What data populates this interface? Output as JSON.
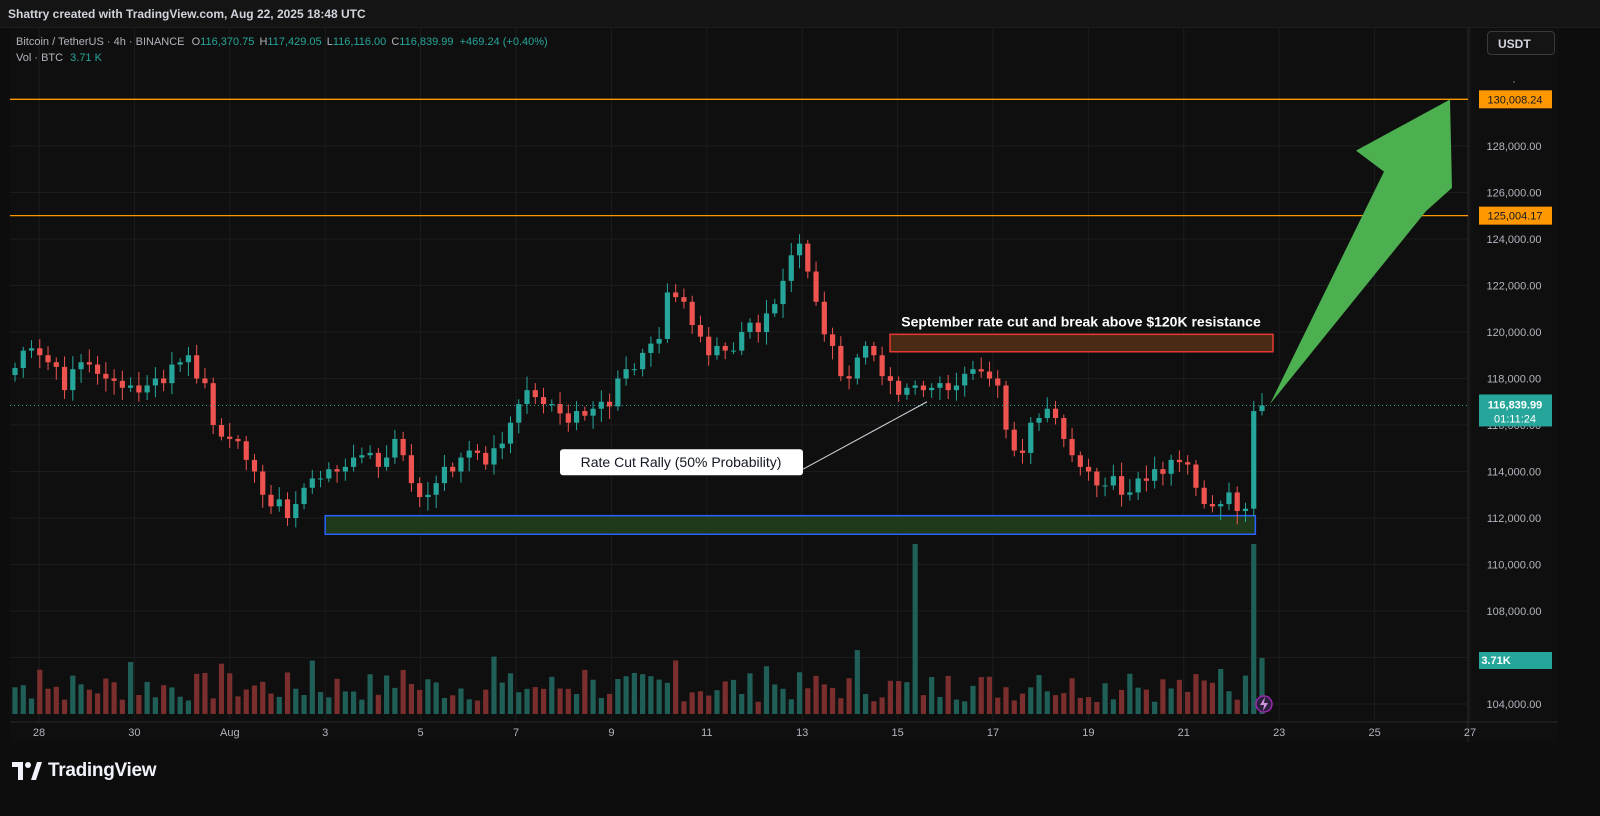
{
  "header": {
    "attribution": "Shattry created with TradingView.com, Aug 22, 2025 18:48 UTC"
  },
  "legend": {
    "symbol": "Bitcoin / TetherUS · 4h · BINANCE",
    "o_label": "O",
    "o_value": "116,370.75",
    "h_label": "H",
    "h_value": "117,429.05",
    "l_label": "L",
    "l_value": "116,116.00",
    "c_label": "C",
    "c_value": "116,839.99",
    "change": "+469.24 (+0.40%)",
    "vol_label": "Vol · BTC",
    "vol_value": "3.71 K"
  },
  "currency_button": "USDT",
  "brand": {
    "name": "TradingView"
  },
  "colors": {
    "up": "#26a69a",
    "down": "#ef5350",
    "up_volume": "#1f5f58",
    "down_volume": "#7a2e2d",
    "resistance": "#ff9800",
    "support_box_border": "#2962ff",
    "support_box_fill": "#1f3a1a",
    "target_box_border": "#e53935",
    "target_box_fill": "#4a2a14",
    "arrow": "#4caf50",
    "background": "#0f0f0f"
  },
  "chart_data": {
    "type": "candlestick",
    "symbol": "BTCUSDT",
    "timeframe": "4h",
    "exchange": "BINANCE",
    "ylim": [
      103000,
      131000
    ],
    "y_ticks": [
      "104,000.00",
      "106,000.00",
      "108,000.00",
      "110,000.00",
      "112,000.00",
      "114,000.00",
      "116,000.00",
      "118,000.00",
      "120,000.00",
      "122,000.00",
      "124,000.00",
      "126,000.00",
      "128,000.00"
    ],
    "x_ticks": [
      {
        "label": "28",
        "day": 0
      },
      {
        "label": "30",
        "day": 2
      },
      {
        "label": "Aug",
        "day": 4
      },
      {
        "label": "3",
        "day": 6
      },
      {
        "label": "5",
        "day": 8
      },
      {
        "label": "7",
        "day": 10
      },
      {
        "label": "9",
        "day": 12
      },
      {
        "label": "11",
        "day": 14
      },
      {
        "label": "13",
        "day": 16
      },
      {
        "label": "15",
        "day": 18
      },
      {
        "label": "17",
        "day": 20
      },
      {
        "label": "19",
        "day": 22
      },
      {
        "label": "21",
        "day": 24
      },
      {
        "label": "23",
        "day": 26
      },
      {
        "label": "25",
        "day": 28
      },
      {
        "label": "27",
        "day": 30
      }
    ],
    "closes": [
      118450,
      119200,
      119300,
      119000,
      118700,
      118500,
      117500,
      118400,
      118700,
      118600,
      118200,
      118000,
      117900,
      117600,
      117700,
      117400,
      117700,
      118000,
      117800,
      118600,
      118700,
      119000,
      118000,
      117800,
      116000,
      115500,
      115400,
      115300,
      114500,
      114000,
      113000,
      112500,
      112800,
      112000,
      112600,
      113300,
      113700,
      113700,
      114100,
      114000,
      114200,
      114600,
      114700,
      114800,
      114200,
      114600,
      115400,
      114700,
      113500,
      112900,
      113000,
      113500,
      114200,
      114000,
      114600,
      114900,
      114800,
      114300,
      115000,
      115200,
      116100,
      116900,
      117500,
      117200,
      116900,
      116900,
      116500,
      116100,
      116600,
      116400,
      116700,
      117000,
      116800,
      118000,
      118400,
      118400,
      119100,
      119500,
      119700,
      121700,
      121500,
      121300,
      120300,
      119800,
      119000,
      119400,
      119200,
      119200,
      120000,
      120400,
      120000,
      120800,
      121200,
      122200,
      123300,
      123800,
      122600,
      121300,
      119900,
      119400,
      118100,
      118000,
      118900,
      119400,
      119000,
      118100,
      117900,
      117300,
      117600,
      117700,
      117500,
      117600,
      117800,
      117500,
      117700,
      118200,
      118400,
      118300,
      118000,
      117700,
      115800,
      114900,
      114800,
      116100,
      116300,
      116700,
      116300,
      115400,
      114700,
      114200,
      114000,
      113400,
      113400,
      113800,
      113000,
      113100,
      113700,
      113600,
      114100,
      113900,
      114500,
      114400,
      114300,
      113300,
      112600,
      112500,
      112600,
      113100,
      112300,
      112400,
      116600,
      116839.99
    ],
    "volume_units": "BTC",
    "last_volume": "3.71K",
    "last_price": "116,839.99",
    "countdown": "01:11:24",
    "levels": [
      {
        "price": 130008.24,
        "label": "130,008.24"
      },
      {
        "price": 125004.17,
        "label": "125,004.17"
      }
    ],
    "zones": [
      {
        "name": "support",
        "price_low": 111300,
        "price_high": 112100,
        "from_day": 6,
        "to_day": 25.5
      },
      {
        "name": "target",
        "price_low": 119150,
        "price_high": 119900,
        "from_day": 18,
        "to_day": 24.5
      }
    ],
    "annotations": [
      {
        "text": "September rate cut and break above $120K resistance"
      },
      {
        "text": "Rate Cut Rally (50% Probability)"
      }
    ],
    "arrow": {
      "from_price": 116900,
      "to_price": 130000
    }
  }
}
